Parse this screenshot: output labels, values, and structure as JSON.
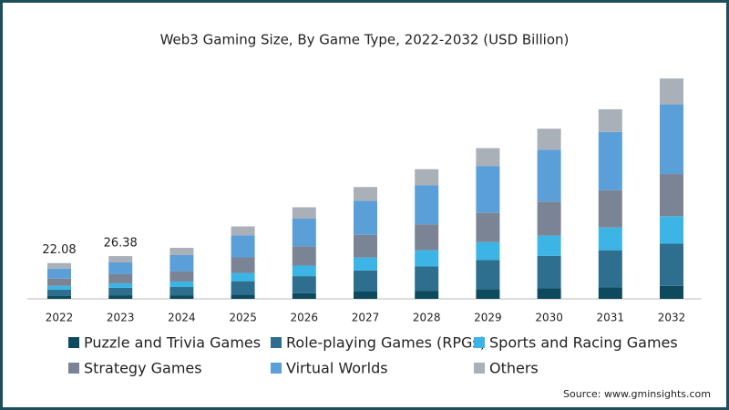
{
  "chart_data": {
    "type": "stacked_bar",
    "title": "Web3 Gaming Size, By Game Type, 2022-2032 (USD Billion)",
    "categories": [
      "2022",
      "2023",
      "2024",
      "2025",
      "2026",
      "2027",
      "2028",
      "2029",
      "2030",
      "2031",
      "2032"
    ],
    "series": [
      {
        "name": "Puzzle and Trivia Games",
        "color": "#0d4a5e",
        "values": [
          1.7,
          2.2,
          2.2,
          2.5,
          3.5,
          4.5,
          5,
          6,
          6.5,
          7,
          8
        ]
      },
      {
        "name": "Role-playing Games (RPGs)",
        "color": "#2e6e8e",
        "values": [
          4.0,
          4.6,
          5.1,
          8.4,
          10.5,
          13,
          15,
          18,
          20,
          23,
          26
        ]
      },
      {
        "name": "Sports and Racing Games",
        "color": "#3cb4e6",
        "values": [
          2.3,
          2.8,
          3.4,
          5.1,
          6.5,
          8,
          10,
          11,
          12.5,
          14,
          17
        ]
      },
      {
        "name": "Strategy Games",
        "color": "#7a8494",
        "values": [
          4.5,
          5.6,
          6.2,
          9.6,
          12,
          14,
          16,
          18,
          21,
          23,
          26
        ]
      },
      {
        "name": "Virtual Worlds",
        "color": "#5a9fd8",
        "values": [
          6.2,
          7.3,
          10.1,
          13.5,
          17,
          21,
          24,
          29,
          32,
          36,
          43
        ]
      },
      {
        "name": "Others",
        "color": "#aab0b8",
        "values": [
          3.38,
          3.88,
          4.5,
          5.6,
          7,
          8.5,
          10,
          11,
          13,
          14,
          16
        ]
      }
    ],
    "totals": [
      22.08,
      26.38
    ],
    "ylim": [
      0,
      140
    ],
    "source": "Source: www.gminsights.com"
  }
}
